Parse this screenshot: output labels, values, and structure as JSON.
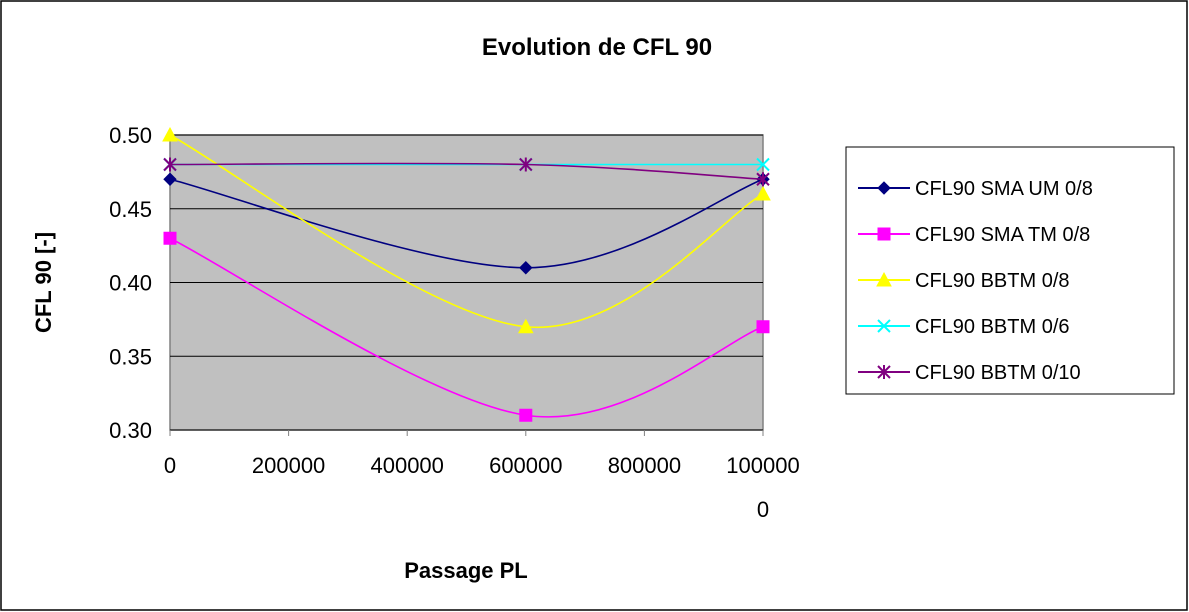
{
  "chart_data": {
    "type": "line",
    "title": "Evolution de CFL 90",
    "xlabel": "Passage PL",
    "ylabel": "CFL 90 [-]",
    "x": [
      0,
      600000,
      1000000
    ],
    "xlim": [
      0,
      1000000
    ],
    "ylim": [
      0.3,
      0.5
    ],
    "xticks": [
      0,
      200000,
      400000,
      600000,
      800000,
      1000000
    ],
    "xtick_labels": [
      [
        "0"
      ],
      [
        "200000"
      ],
      [
        "400000"
      ],
      [
        "600000"
      ],
      [
        "800000"
      ],
      [
        "100000",
        "0"
      ]
    ],
    "yticks": [
      0.3,
      0.35,
      0.4,
      0.45,
      0.5
    ],
    "ytick_labels": [
      "0.30",
      "0.35",
      "0.40",
      "0.45",
      "0.50"
    ],
    "grid": true,
    "smooth": true,
    "legend_position": "right",
    "series": [
      {
        "name": "CFL90 SMA UM 0/8",
        "values": [
          0.47,
          0.41,
          0.47
        ],
        "color": "#000080",
        "marker": "diamond"
      },
      {
        "name": "CFL90 SMA TM 0/8",
        "values": [
          0.43,
          0.31,
          0.37
        ],
        "color": "#ff00ff",
        "marker": "square"
      },
      {
        "name": "CFL90 BBTM 0/8",
        "values": [
          0.5,
          0.37,
          0.46
        ],
        "color": "#ffff00",
        "marker": "triangle"
      },
      {
        "name": "CFL90 BBTM 0/6",
        "values": [
          0.48,
          0.48,
          0.48
        ],
        "color": "#00ffff",
        "marker": "x"
      },
      {
        "name": "CFL90 BBTM 0/10",
        "values": [
          0.48,
          0.48,
          0.47
        ],
        "color": "#800080",
        "marker": "star"
      }
    ]
  }
}
